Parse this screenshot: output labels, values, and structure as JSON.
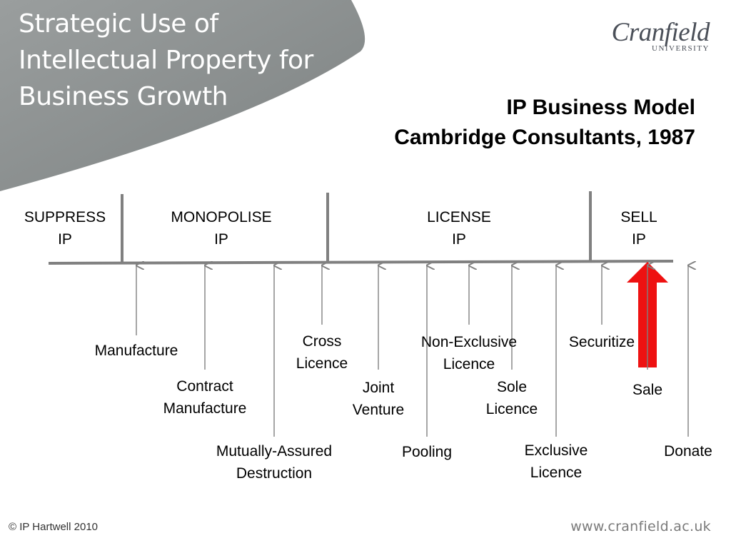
{
  "deck": {
    "title_lines": [
      "Strategic Use of",
      "Intellectual Property for",
      "Business Growth"
    ],
    "banner_color": "#8a8f8f"
  },
  "logo": {
    "name": "Cranfield",
    "sub": "UNIVERSITY"
  },
  "slide": {
    "title_lines": [
      "IP Business Model",
      "Cambridge Consultants, 1987"
    ]
  },
  "categories": [
    {
      "lines": [
        "SUPPRESS",
        "IP"
      ]
    },
    {
      "lines": [
        "MONOPOLISE",
        "IP"
      ]
    },
    {
      "lines": [
        "LICENSE",
        "IP"
      ]
    },
    {
      "lines": [
        "SELL",
        "IP"
      ]
    }
  ],
  "options": [
    {
      "lines": [
        "Manufacture"
      ]
    },
    {
      "lines": [
        "Contract",
        "Manufacture"
      ]
    },
    {
      "lines": [
        "Mutually-Assured",
        "Destruction"
      ]
    },
    {
      "lines": [
        "Cross",
        "Licence"
      ]
    },
    {
      "lines": [
        "Joint",
        "Venture"
      ]
    },
    {
      "lines": [
        "Pooling"
      ]
    },
    {
      "lines": [
        "Non-Exclusive",
        "Licence"
      ]
    },
    {
      "lines": [
        "Sole",
        "Licence"
      ]
    },
    {
      "lines": [
        "Exclusive",
        "Licence"
      ]
    },
    {
      "lines": [
        "Securitize"
      ]
    },
    {
      "lines": [
        "Sale"
      ],
      "highlight": true
    },
    {
      "lines": [
        "Donate"
      ]
    }
  ],
  "colors": {
    "line": "#808080",
    "highlight_arrow": "#ee1111"
  },
  "footer": {
    "copyright": "© IP Hartwell 2010",
    "url": "www.cranfield.ac.uk"
  }
}
